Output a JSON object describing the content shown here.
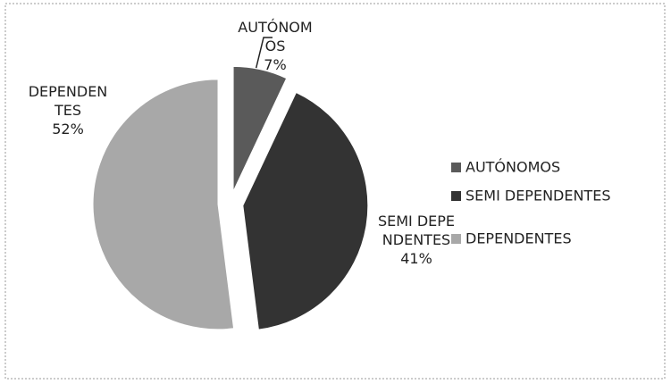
{
  "chart_data": {
    "type": "pie",
    "categories": [
      "AUTÓNOMOS",
      "SEMI DEPENDENTES",
      "DEPENDENTES"
    ],
    "values": [
      7,
      41,
      52
    ],
    "value_labels": [
      "7%",
      "41%",
      "52%"
    ],
    "colors": [
      "#5a5a5a",
      "#333333",
      "#a8a8a8"
    ],
    "legend": "right"
  }
}
